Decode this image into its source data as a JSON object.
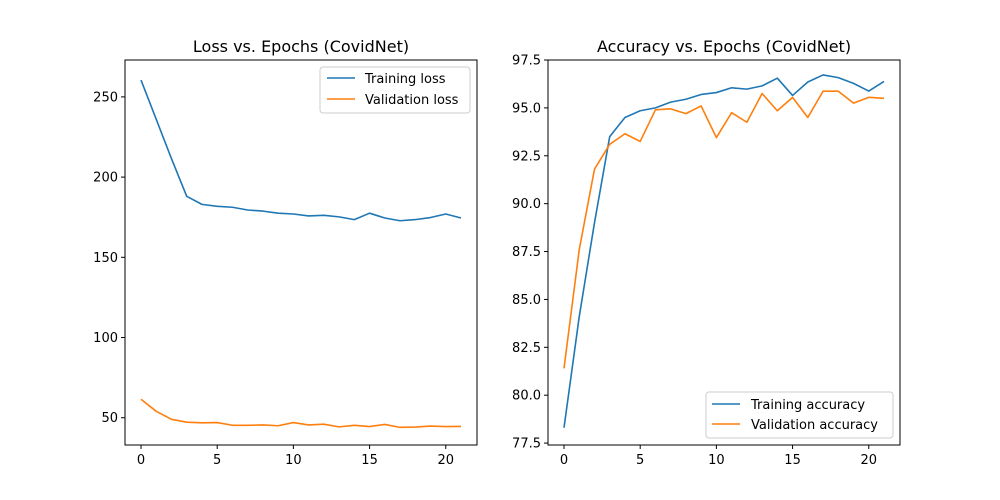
{
  "chart_data": [
    {
      "type": "line",
      "title": "Loss vs. Epochs (CovidNet)",
      "xlabel": "",
      "ylabel": "",
      "xlim": [
        -1.05,
        22.05
      ],
      "ylim": [
        33,
        273
      ],
      "xticks": [
        0,
        5,
        10,
        15,
        20
      ],
      "yticks": [
        50,
        100,
        150,
        200,
        250
      ],
      "grid": false,
      "legend_position": "upper right",
      "x": [
        0,
        1,
        2,
        3,
        4,
        5,
        6,
        7,
        8,
        9,
        10,
        11,
        12,
        13,
        14,
        15,
        16,
        17,
        18,
        19,
        20,
        21
      ],
      "series": [
        {
          "name": "Training loss",
          "color": "#1f77b4",
          "values": [
            260.5,
            236,
            211.5,
            188,
            183,
            181.8,
            181.2,
            179.5,
            178.8,
            177.5,
            177,
            175.8,
            176.2,
            175.2,
            173.5,
            177.5,
            174.5,
            172.8,
            173.5,
            174.8,
            177,
            174.5
          ]
        },
        {
          "name": "Validation loss",
          "color": "#ff7f0e",
          "values": [
            61.5,
            54,
            49,
            47.2,
            46.8,
            47,
            45.3,
            45.3,
            45.5,
            45,
            47,
            45.5,
            46,
            44.3,
            45.3,
            44.5,
            45.8,
            44,
            44.2,
            44.8,
            44.5,
            44.6
          ]
        }
      ]
    },
    {
      "type": "line",
      "title": "Accuracy vs. Epochs (CovidNet)",
      "xlabel": "",
      "ylabel": "",
      "xlim": [
        -1.05,
        22.05
      ],
      "ylim": [
        77.4,
        97.5
      ],
      "xticks": [
        0,
        5,
        10,
        15,
        20
      ],
      "yticks": [
        77.5,
        80.0,
        82.5,
        85.0,
        87.5,
        90.0,
        92.5,
        95.0,
        97.5
      ],
      "grid": false,
      "legend_position": "lower right",
      "x": [
        0,
        1,
        2,
        3,
        4,
        5,
        6,
        7,
        8,
        9,
        10,
        11,
        12,
        13,
        14,
        15,
        16,
        17,
        18,
        19,
        20,
        21
      ],
      "series": [
        {
          "name": "Training accuracy",
          "color": "#1f77b4",
          "values": [
            78.3,
            84.1,
            89.0,
            93.5,
            94.5,
            94.85,
            95.0,
            95.3,
            95.45,
            95.7,
            95.8,
            96.05,
            95.98,
            96.15,
            96.55,
            95.65,
            96.35,
            96.72,
            96.58,
            96.28,
            95.88,
            96.38
          ]
        },
        {
          "name": "Validation accuracy",
          "color": "#ff7f0e",
          "values": [
            81.4,
            87.6,
            91.8,
            93.1,
            93.65,
            93.25,
            94.9,
            94.95,
            94.7,
            95.1,
            93.45,
            94.75,
            94.25,
            95.75,
            94.85,
            95.55,
            94.5,
            95.87,
            95.87,
            95.25,
            95.55,
            95.5
          ]
        }
      ]
    }
  ]
}
